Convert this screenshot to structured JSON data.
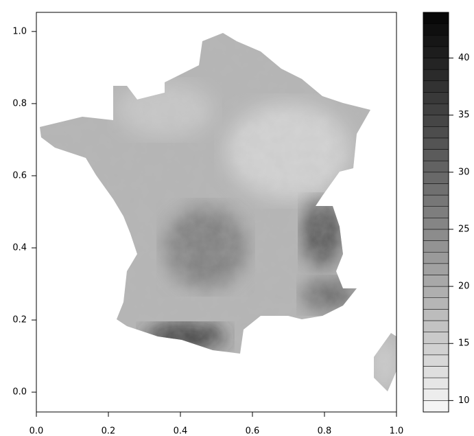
{
  "chart_data": {
    "type": "map",
    "xlim": [
      0,
      1
    ],
    "ylim": [
      -0.055,
      1.053
    ],
    "xticks": [
      {
        "value": 0,
        "label": "0.0"
      },
      0.2,
      0.4,
      0.6,
      0.8,
      {
        "value": 1,
        "label": "1.0"
      }
    ],
    "yticks": [
      {
        "value": 0,
        "label": "0.0"
      },
      0.2,
      0.4,
      0.6,
      0.8,
      {
        "value": 1,
        "label": "1.0"
      }
    ],
    "colorbar": {
      "lim": [
        9,
        44
      ],
      "levels": [
        9,
        10,
        11,
        12,
        13,
        14,
        15,
        16,
        17,
        18,
        19,
        20,
        21,
        22,
        23,
        24,
        25,
        26,
        27,
        28,
        29,
        30,
        31,
        32,
        33,
        34,
        35,
        36,
        37,
        38,
        39,
        40,
        41,
        42,
        43,
        44
      ],
      "ticks": [
        10,
        15,
        20,
        25,
        30,
        35,
        40
      ],
      "colors": [
        "#f4f4f4",
        "#080808"
      ]
    }
  }
}
